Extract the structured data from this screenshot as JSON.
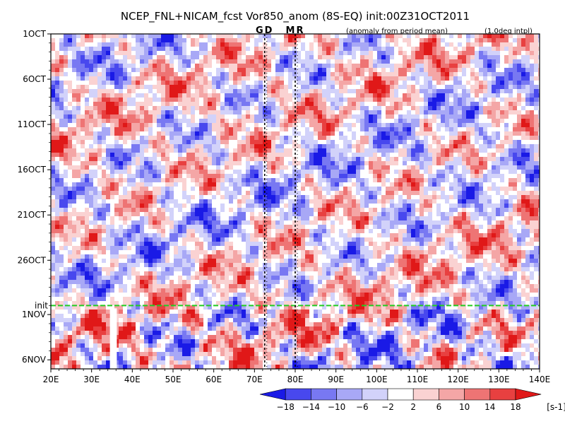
{
  "chart_data": {
    "type": "heatmap",
    "title": "NCEP_FNL+NICAM_fcst Vor850_anom (8S-EQ) init:00Z31OCT2011",
    "subtitle_left": "(anomaly from period mean)",
    "subtitle_right": "(1.0deg intpl)",
    "xlabel": "",
    "ylabel": "",
    "x_ticks": [
      "20E",
      "30E",
      "40E",
      "50E",
      "60E",
      "70E",
      "80E",
      "90E",
      "100E",
      "110E",
      "120E",
      "130E",
      "140E"
    ],
    "x_range_deg": [
      20,
      140
    ],
    "y_ticks": [
      "1OCT",
      "6OCT",
      "11OCT",
      "16OCT",
      "21OCT",
      "26OCT",
      "1NOV",
      "6NOV"
    ],
    "y_range_days": [
      0,
      37
    ],
    "y_tick_days": [
      0,
      5,
      10,
      15,
      20,
      25,
      31,
      36
    ],
    "init_label": "init",
    "init_day": 30,
    "markers": [
      {
        "label": "GD",
        "lon": 72.5
      },
      {
        "label": "MR",
        "lon": 80
      }
    ],
    "colorbar": {
      "levels": [
        "-18",
        "-14",
        "-10",
        "-6",
        "-2",
        "2",
        "6",
        "10",
        "14",
        "18"
      ],
      "units": "[s-1]",
      "colors": [
        "#1a1ae6",
        "#4848ee",
        "#7878f2",
        "#a8a8f6",
        "#d2d2fa",
        "#ffffff",
        "#fad2d2",
        "#f4a6a6",
        "#ee7474",
        "#e84040",
        "#e01818"
      ]
    },
    "colors": {
      "init_line": "#22cc22",
      "marker_text": "#e02020"
    }
  }
}
